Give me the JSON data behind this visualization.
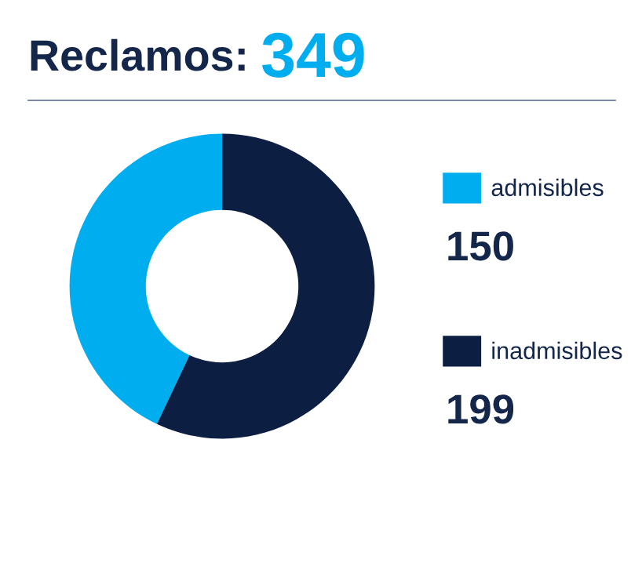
{
  "chart_data": {
    "type": "donut",
    "title": "Reclamos:",
    "subtitle": "349",
    "categories": [
      "admisibles",
      "inadmisibles"
    ],
    "values": [
      150,
      199
    ],
    "colors": [
      "#00aeef",
      "#0c1e42"
    ],
    "data_labels": true,
    "legend": "right"
  }
}
